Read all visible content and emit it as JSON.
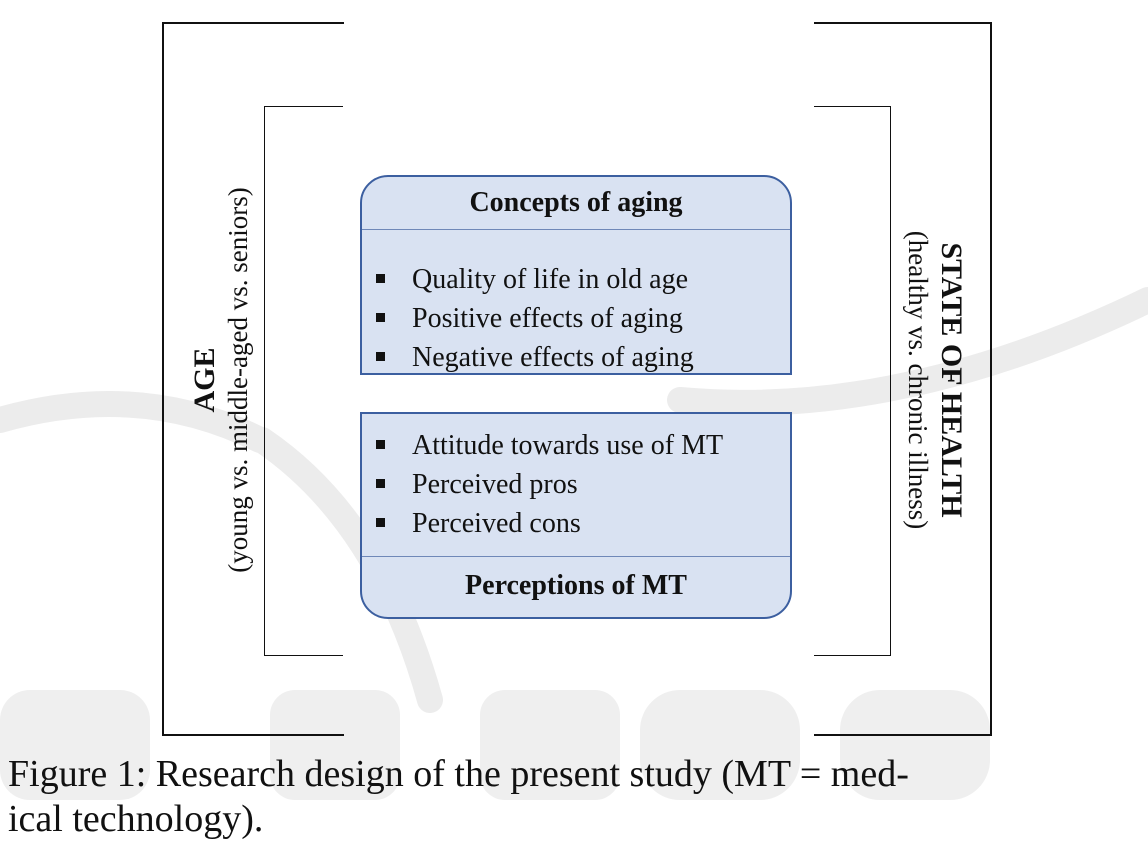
{
  "diagram": {
    "age_label": "AGE",
    "age_sublabel": "(young vs. middle-aged vs. seniors)",
    "health_label": "STATE OF HEALTH",
    "health_sublabel": "(healthy vs. chronic illness)",
    "concepts_box": {
      "title": "Concepts of aging",
      "items": [
        "Quality of life in old age",
        "Positive effects of aging",
        "Negative effects of aging"
      ]
    },
    "perceptions_box": {
      "title": "Perceptions of MT",
      "items": [
        "Attitude towards use of MT",
        "Perceived pros",
        "Perceived cons"
      ]
    }
  },
  "caption": {
    "line1": "Figure 1: Research design of the present study (MT = med-",
    "line2": "ical technology)."
  },
  "colors": {
    "box_fill": "#d9e2f2",
    "box_border": "#3c5fa0",
    "frame": "#111111"
  }
}
